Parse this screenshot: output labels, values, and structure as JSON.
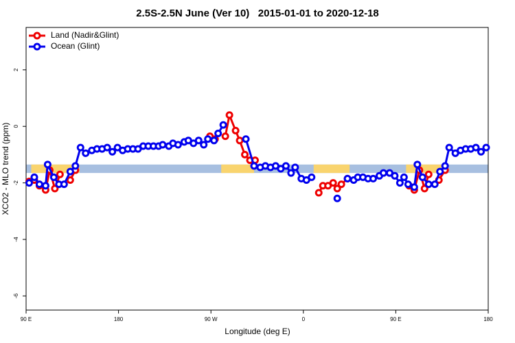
{
  "chart_data": {
    "type": "line",
    "title": "2.5S-2.5N June (Ver 10)   2015-01-01 to 2020-12-18",
    "xlabel": "Longitude (deg E)",
    "ylabel": "XCO2 - MLO trend (ppm)",
    "xlim": [
      90,
      540
    ],
    "ylim": [
      -6.5,
      3.5
    ],
    "xticks": [
      {
        "value": 90,
        "label": "90 E"
      },
      180,
      {
        "value": 270,
        "label": "90 W"
      },
      {
        "value": 360,
        "label": "0"
      },
      {
        "value": 450,
        "label": "90 E"
      },
      {
        "value": 540,
        "label": "180"
      }
    ],
    "yticks": [
      -6,
      -4,
      -2,
      0,
      2
    ],
    "grid": false,
    "legend": "top-left",
    "band": {
      "ylim": [
        -1.65,
        -1.35
      ],
      "color": "#a7bfe0",
      "land_color": "#f9d46e",
      "land_segments": [
        [
          95,
          142
        ],
        [
          280,
          312
        ],
        [
          370,
          405
        ],
        [
          460,
          500
        ]
      ]
    },
    "series": [
      {
        "name": "Land (Nadir&Glint)",
        "color": "#ee0000",
        "x": [
          93,
          98,
          103,
          109,
          113,
          118,
          123,
          null,
          133,
          138,
          null,
          269,
          274,
          null,
          284,
          288,
          294,
          298,
          303,
          308,
          313,
          null,
          375,
          379,
          384,
          389,
          393,
          397,
          403,
          null,
          463,
          468,
          473,
          478,
          482,
          null,
          492,
          498
        ],
        "values": [
          -1.95,
          -1.9,
          -2.1,
          -2.25,
          -1.55,
          -2.2,
          -1.7,
          null,
          -1.9,
          -1.55,
          null,
          -0.35,
          -0.45,
          null,
          -0.35,
          0.4,
          -0.15,
          -0.5,
          -1.0,
          -1.2,
          -1.2,
          null,
          -2.35,
          -2.1,
          -2.1,
          -2.0,
          -2.2,
          -2.05,
          -1.85,
          null,
          -2.1,
          -2.25,
          -1.55,
          -2.2,
          -1.7,
          null,
          -1.9,
          -1.55
        ]
      },
      {
        "name": "Ocean (Glint)",
        "color": "#0000ee",
        "x": [
          93,
          98,
          103,
          109,
          111,
          117,
          122,
          127,
          133,
          138,
          143,
          148,
          154,
          159,
          164,
          169,
          174,
          179,
          184,
          189,
          194,
          199,
          204,
          209,
          214,
          219,
          223,
          229,
          233,
          238,
          244,
          248,
          253,
          258,
          263,
          267,
          273,
          277,
          282,
          null,
          304,
          312,
          318,
          323,
          328,
          333,
          338,
          343,
          348,
          352,
          358,
          363,
          368,
          null,
          393,
          null,
          403,
          409,
          413,
          418,
          423,
          428,
          434,
          438,
          444,
          449,
          454,
          458,
          462,
          468,
          471,
          476,
          482,
          488,
          493,
          498,
          502,
          508,
          513,
          518,
          523,
          528,
          533,
          538
        ],
        "values": [
          -2.0,
          -1.8,
          -2.05,
          -2.1,
          -1.35,
          -1.8,
          -2.05,
          -2.05,
          -1.6,
          -1.4,
          -0.75,
          -0.95,
          -0.85,
          -0.8,
          -0.8,
          -0.75,
          -0.9,
          -0.75,
          -0.85,
          -0.8,
          -0.8,
          -0.8,
          -0.7,
          -0.7,
          -0.7,
          -0.7,
          -0.65,
          -0.7,
          -0.6,
          -0.65,
          -0.55,
          -0.5,
          -0.6,
          -0.5,
          -0.65,
          -0.45,
          -0.5,
          -0.25,
          0.05,
          null,
          -0.45,
          -1.4,
          -1.45,
          -1.4,
          -1.45,
          -1.4,
          -1.5,
          -1.4,
          -1.65,
          -1.45,
          -1.85,
          -1.9,
          -1.8,
          null,
          -2.55,
          null,
          -1.85,
          -1.9,
          -1.8,
          -1.8,
          -1.85,
          -1.85,
          -1.75,
          -1.65,
          -1.65,
          -1.75,
          -2.0,
          -1.8,
          -2.05,
          -2.15,
          -1.35,
          -1.8,
          -2.05,
          -2.05,
          -1.6,
          -1.4,
          -0.75,
          -0.95,
          -0.85,
          -0.8,
          -0.8,
          -0.75,
          -0.9,
          -0.75
        ]
      }
    ]
  }
}
